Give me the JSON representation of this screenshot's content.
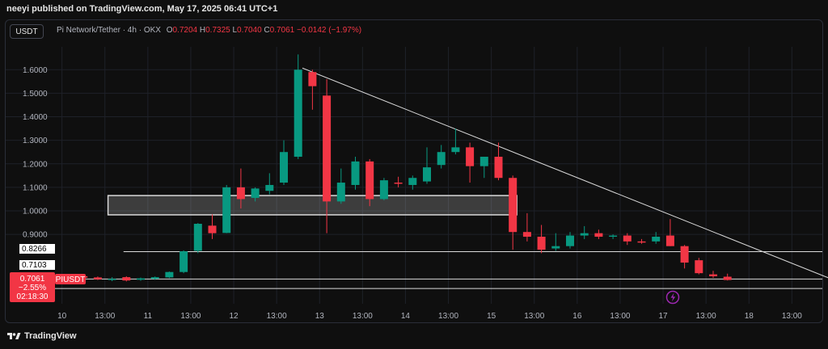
{
  "header": {
    "publisher": "neeyi published on TradingView.com, May 17, 2025 06:41 UTC+1",
    "currency_button": "USDT"
  },
  "legend": {
    "symbol": "Pi Network/Tether · 4h · OKX",
    "o_label": "O",
    "o": "0.7204",
    "h_label": "H",
    "h": "0.7325",
    "l_label": "L",
    "l": "0.7040",
    "c_label": "C",
    "c": "0.7061",
    "change": "−0.0142 (−1.97%)"
  },
  "price_tag": {
    "price": "0.7061",
    "change_pct": "−2.55%",
    "countdown": "02:18:30",
    "symbol_label": "PIUSDT"
  },
  "level_labels": [
    "0.8266",
    "0.7103"
  ],
  "footer": {
    "brand": "TradingView"
  },
  "colors": {
    "up": "#089981",
    "down": "#f23645",
    "background": "#0f0f0f",
    "zone": "#d9d9d9"
  },
  "chart_data": {
    "type": "candlestick",
    "title": "",
    "ylim": [
      0.605,
      1.68
    ],
    "y_ticks": [
      0.9,
      1.0,
      1.1,
      1.2,
      1.3,
      1.4,
      1.5,
      1.6
    ],
    "y_tick_labels": [
      "0.9000",
      "1.0000",
      "1.1000",
      "1.2000",
      "1.3000",
      "1.4000",
      "1.5000",
      "1.6000"
    ],
    "x_ticks": [
      {
        "label": "10",
        "i": -0.5
      },
      {
        "label": "13:00",
        "i": 2.5
      },
      {
        "label": "11",
        "i": 5.5
      },
      {
        "label": "13:00",
        "i": 8.5
      },
      {
        "label": "12",
        "i": 11.5
      },
      {
        "label": "13:00",
        "i": 14.5
      },
      {
        "label": "13",
        "i": 17.5
      },
      {
        "label": "13:00",
        "i": 20.5
      },
      {
        "label": "14",
        "i": 23.5
      },
      {
        "label": "13:00",
        "i": 26.5
      },
      {
        "label": "15",
        "i": 29.5
      },
      {
        "label": "13:00",
        "i": 32.5
      },
      {
        "label": "16",
        "i": 35.5
      },
      {
        "label": "13:00",
        "i": 38.5
      },
      {
        "label": "17",
        "i": 41.5
      },
      {
        "label": "13:00",
        "i": 44.5
      },
      {
        "label": "18",
        "i": 47.5
      },
      {
        "label": "13:00",
        "i": 50.5
      }
    ],
    "candles": [
      {
        "o": 0.727,
        "h": 0.731,
        "l": 0.719,
        "c": 0.723
      },
      {
        "o": 0.722,
        "h": 0.728,
        "l": 0.712,
        "c": 0.716
      },
      {
        "o": 0.717,
        "h": 0.721,
        "l": 0.706,
        "c": 0.709
      },
      {
        "o": 0.706,
        "h": 0.718,
        "l": 0.701,
        "c": 0.711
      },
      {
        "o": 0.718,
        "h": 0.722,
        "l": 0.7,
        "c": 0.704
      },
      {
        "o": 0.707,
        "h": 0.716,
        "l": 0.703,
        "c": 0.713
      },
      {
        "o": 0.711,
        "h": 0.721,
        "l": 0.707,
        "c": 0.718
      },
      {
        "o": 0.717,
        "h": 0.742,
        "l": 0.714,
        "c": 0.74
      },
      {
        "o": 0.74,
        "h": 0.832,
        "l": 0.735,
        "c": 0.828
      },
      {
        "o": 0.83,
        "h": 0.948,
        "l": 0.82,
        "c": 0.945
      },
      {
        "o": 0.937,
        "h": 0.985,
        "l": 0.88,
        "c": 0.905
      },
      {
        "o": 0.906,
        "h": 1.11,
        "l": 0.905,
        "c": 1.1
      },
      {
        "o": 1.1,
        "h": 1.18,
        "l": 1.01,
        "c": 1.05
      },
      {
        "o": 1.055,
        "h": 1.1,
        "l": 1.04,
        "c": 1.095
      },
      {
        "o": 1.085,
        "h": 1.16,
        "l": 1.07,
        "c": 1.11
      },
      {
        "o": 1.12,
        "h": 1.3,
        "l": 1.11,
        "c": 1.25
      },
      {
        "o": 1.23,
        "h": 1.665,
        "l": 1.22,
        "c": 1.6
      },
      {
        "o": 1.59,
        "h": 1.6,
        "l": 1.43,
        "c": 1.53
      },
      {
        "o": 1.49,
        "h": 1.56,
        "l": 0.905,
        "c": 1.04
      },
      {
        "o": 1.04,
        "h": 1.18,
        "l": 1.03,
        "c": 1.12
      },
      {
        "o": 1.11,
        "h": 1.23,
        "l": 1.09,
        "c": 1.21
      },
      {
        "o": 1.21,
        "h": 1.22,
        "l": 1.02,
        "c": 1.05
      },
      {
        "o": 1.05,
        "h": 1.14,
        "l": 1.045,
        "c": 1.13
      },
      {
        "o": 1.12,
        "h": 1.145,
        "l": 1.1,
        "c": 1.115
      },
      {
        "o": 1.11,
        "h": 1.15,
        "l": 1.09,
        "c": 1.14
      },
      {
        "o": 1.125,
        "h": 1.27,
        "l": 1.115,
        "c": 1.185
      },
      {
        "o": 1.195,
        "h": 1.28,
        "l": 1.18,
        "c": 1.25
      },
      {
        "o": 1.25,
        "h": 1.35,
        "l": 1.24,
        "c": 1.27
      },
      {
        "o": 1.27,
        "h": 1.29,
        "l": 1.12,
        "c": 1.19
      },
      {
        "o": 1.19,
        "h": 1.23,
        "l": 1.14,
        "c": 1.23
      },
      {
        "o": 1.23,
        "h": 1.29,
        "l": 1.13,
        "c": 1.14
      },
      {
        "o": 1.14,
        "h": 1.15,
        "l": 0.835,
        "c": 0.91
      },
      {
        "o": 0.91,
        "h": 0.99,
        "l": 0.87,
        "c": 0.89
      },
      {
        "o": 0.89,
        "h": 0.94,
        "l": 0.82,
        "c": 0.835
      },
      {
        "o": 0.84,
        "h": 0.905,
        "l": 0.83,
        "c": 0.85
      },
      {
        "o": 0.85,
        "h": 0.91,
        "l": 0.84,
        "c": 0.895
      },
      {
        "o": 0.895,
        "h": 0.935,
        "l": 0.88,
        "c": 0.905
      },
      {
        "o": 0.905,
        "h": 0.92,
        "l": 0.88,
        "c": 0.89
      },
      {
        "o": 0.89,
        "h": 0.9,
        "l": 0.88,
        "c": 0.895
      },
      {
        "o": 0.895,
        "h": 0.905,
        "l": 0.855,
        "c": 0.87
      },
      {
        "o": 0.87,
        "h": 0.88,
        "l": 0.86,
        "c": 0.865
      },
      {
        "o": 0.87,
        "h": 0.91,
        "l": 0.86,
        "c": 0.89
      },
      {
        "o": 0.895,
        "h": 0.965,
        "l": 0.85,
        "c": 0.85
      },
      {
        "o": 0.85,
        "h": 0.855,
        "l": 0.755,
        "c": 0.78
      },
      {
        "o": 0.79,
        "h": 0.8,
        "l": 0.73,
        "c": 0.735
      },
      {
        "o": 0.73,
        "h": 0.745,
        "l": 0.715,
        "c": 0.722
      },
      {
        "o": 0.72,
        "h": 0.733,
        "l": 0.704,
        "c": 0.706
      }
    ],
    "horizontal_lines": [
      0.8266,
      0.7103,
      0.67
    ],
    "zone": {
      "x_from": 3,
      "x_to": 31,
      "y_top": 1.065,
      "y_bottom": 0.983
    },
    "trendline": {
      "x1": 16.3,
      "y1": 1.607,
      "x2": 54.5,
      "y2": 0.68
    }
  }
}
